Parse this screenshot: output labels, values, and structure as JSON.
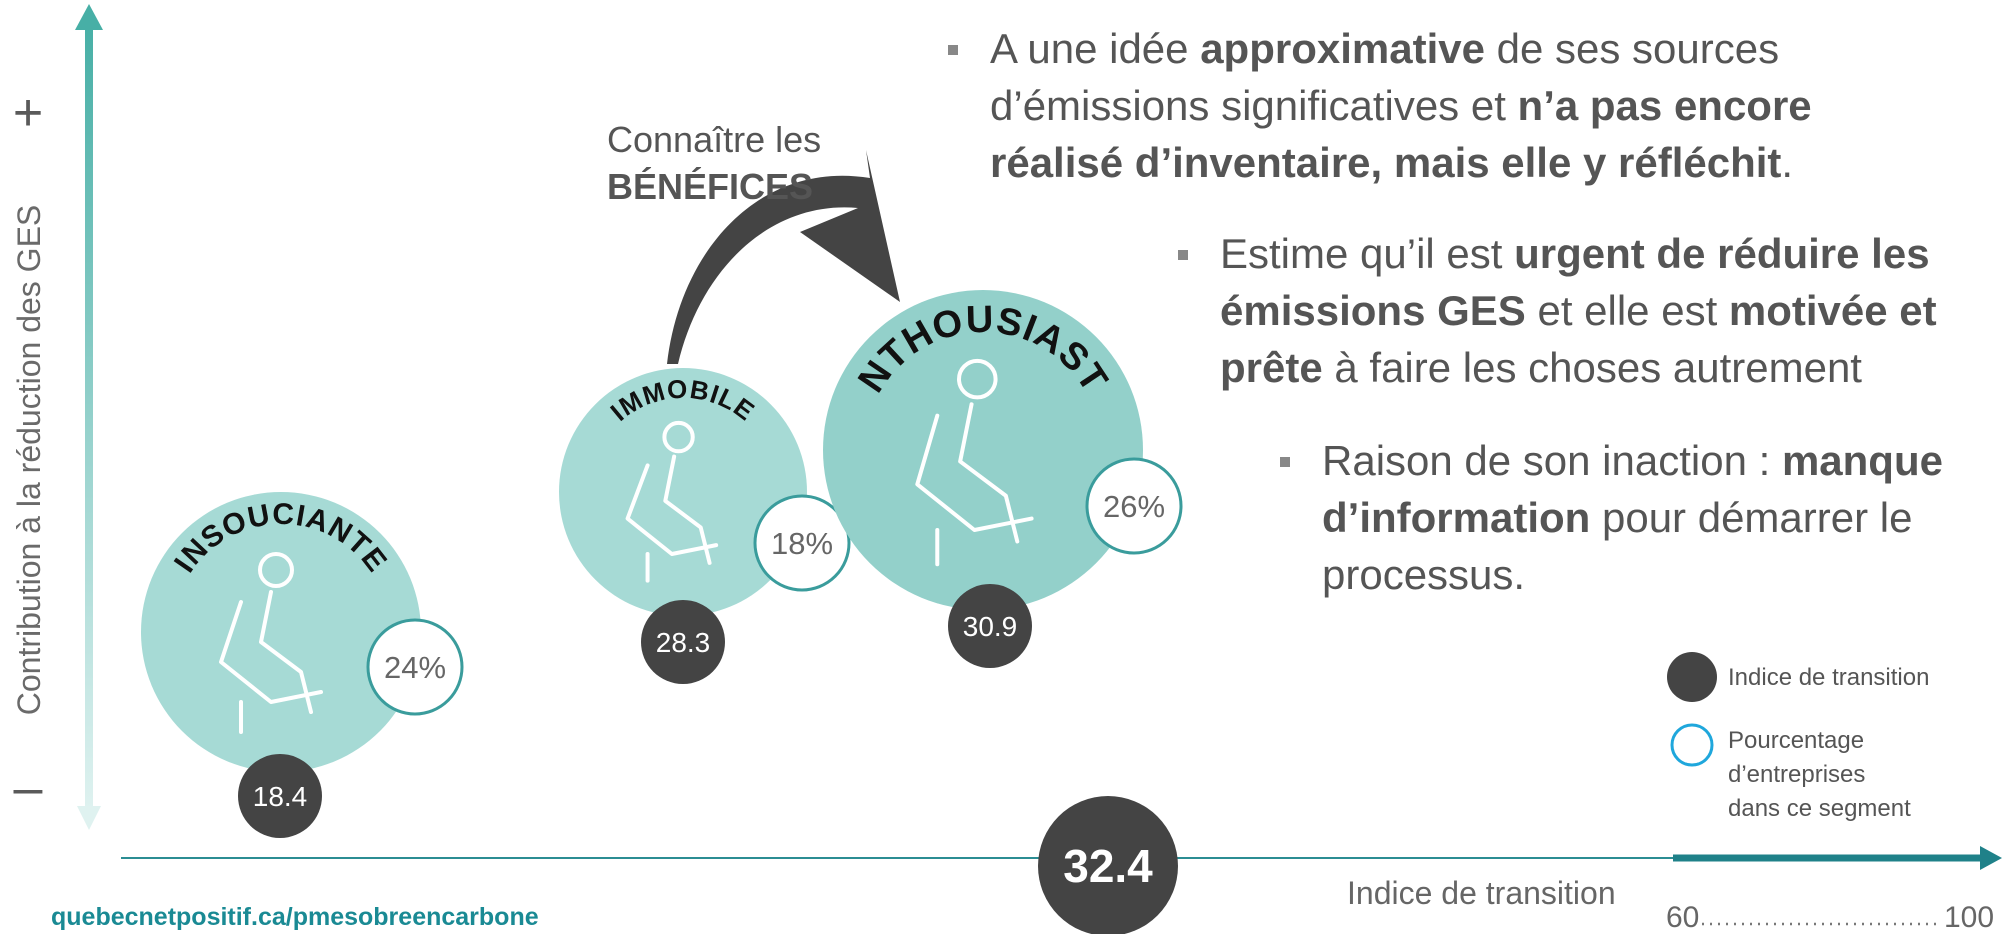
{
  "y_axis": {
    "label": "Contribution à la réduction des GES",
    "plus": "+",
    "minus": "–"
  },
  "arrow_label": {
    "line1": "Connaître les",
    "line2": "BÉNÉFICES"
  },
  "segments": [
    {
      "name": "INSOUCIANTE",
      "percent": "24%",
      "index": "18.4"
    },
    {
      "name": "IMMOBILE",
      "percent": "18%",
      "index": "28.3"
    },
    {
      "name": "ENTHOUSIASTE",
      "percent": "26%",
      "index": "30.9"
    }
  ],
  "bullets": [
    {
      "lines": [
        [
          {
            "text": "A une idée ",
            "bold": false
          },
          {
            "text": "approximative",
            "bold": true
          },
          {
            "text": " de ses sources",
            "bold": false
          }
        ],
        [
          {
            "text": "d’émissions significatives et ",
            "bold": false
          },
          {
            "text": "n’a pas encore",
            "bold": true
          }
        ],
        [
          {
            "text": "réalisé d’inventaire, mais elle y réfléchit",
            "bold": true
          },
          {
            "text": ".",
            "bold": false
          }
        ]
      ]
    },
    {
      "lines": [
        [
          {
            "text": "Estime qu’il est ",
            "bold": false
          },
          {
            "text": "urgent de réduire les",
            "bold": true
          }
        ],
        [
          {
            "text": "émissions GES",
            "bold": true
          },
          {
            "text": " et elle est ",
            "bold": false
          },
          {
            "text": "motivée et",
            "bold": true
          }
        ],
        [
          {
            "text": "prête",
            "bold": true
          },
          {
            "text": " à faire les choses autrement",
            "bold": false
          }
        ]
      ]
    },
    {
      "lines": [
        [
          {
            "text": "Raison de son inaction : ",
            "bold": false
          },
          {
            "text": "manque",
            "bold": true
          }
        ],
        [
          {
            "text": "d’information",
            "bold": true
          },
          {
            "text": " pour démarrer le",
            "bold": false
          }
        ],
        [
          {
            "text": "processus.",
            "bold": false
          }
        ]
      ]
    }
  ],
  "legend": {
    "index": "Indice de transition",
    "percent_lines": [
      "Pourcentage",
      "d’entreprises",
      "dans ce segment"
    ]
  },
  "average": "32.4",
  "x_axis": {
    "label": "Indice de transition",
    "min": "60",
    "max": "100"
  },
  "url": "quebecnetpositif.ca/pmesobreencarbone"
}
